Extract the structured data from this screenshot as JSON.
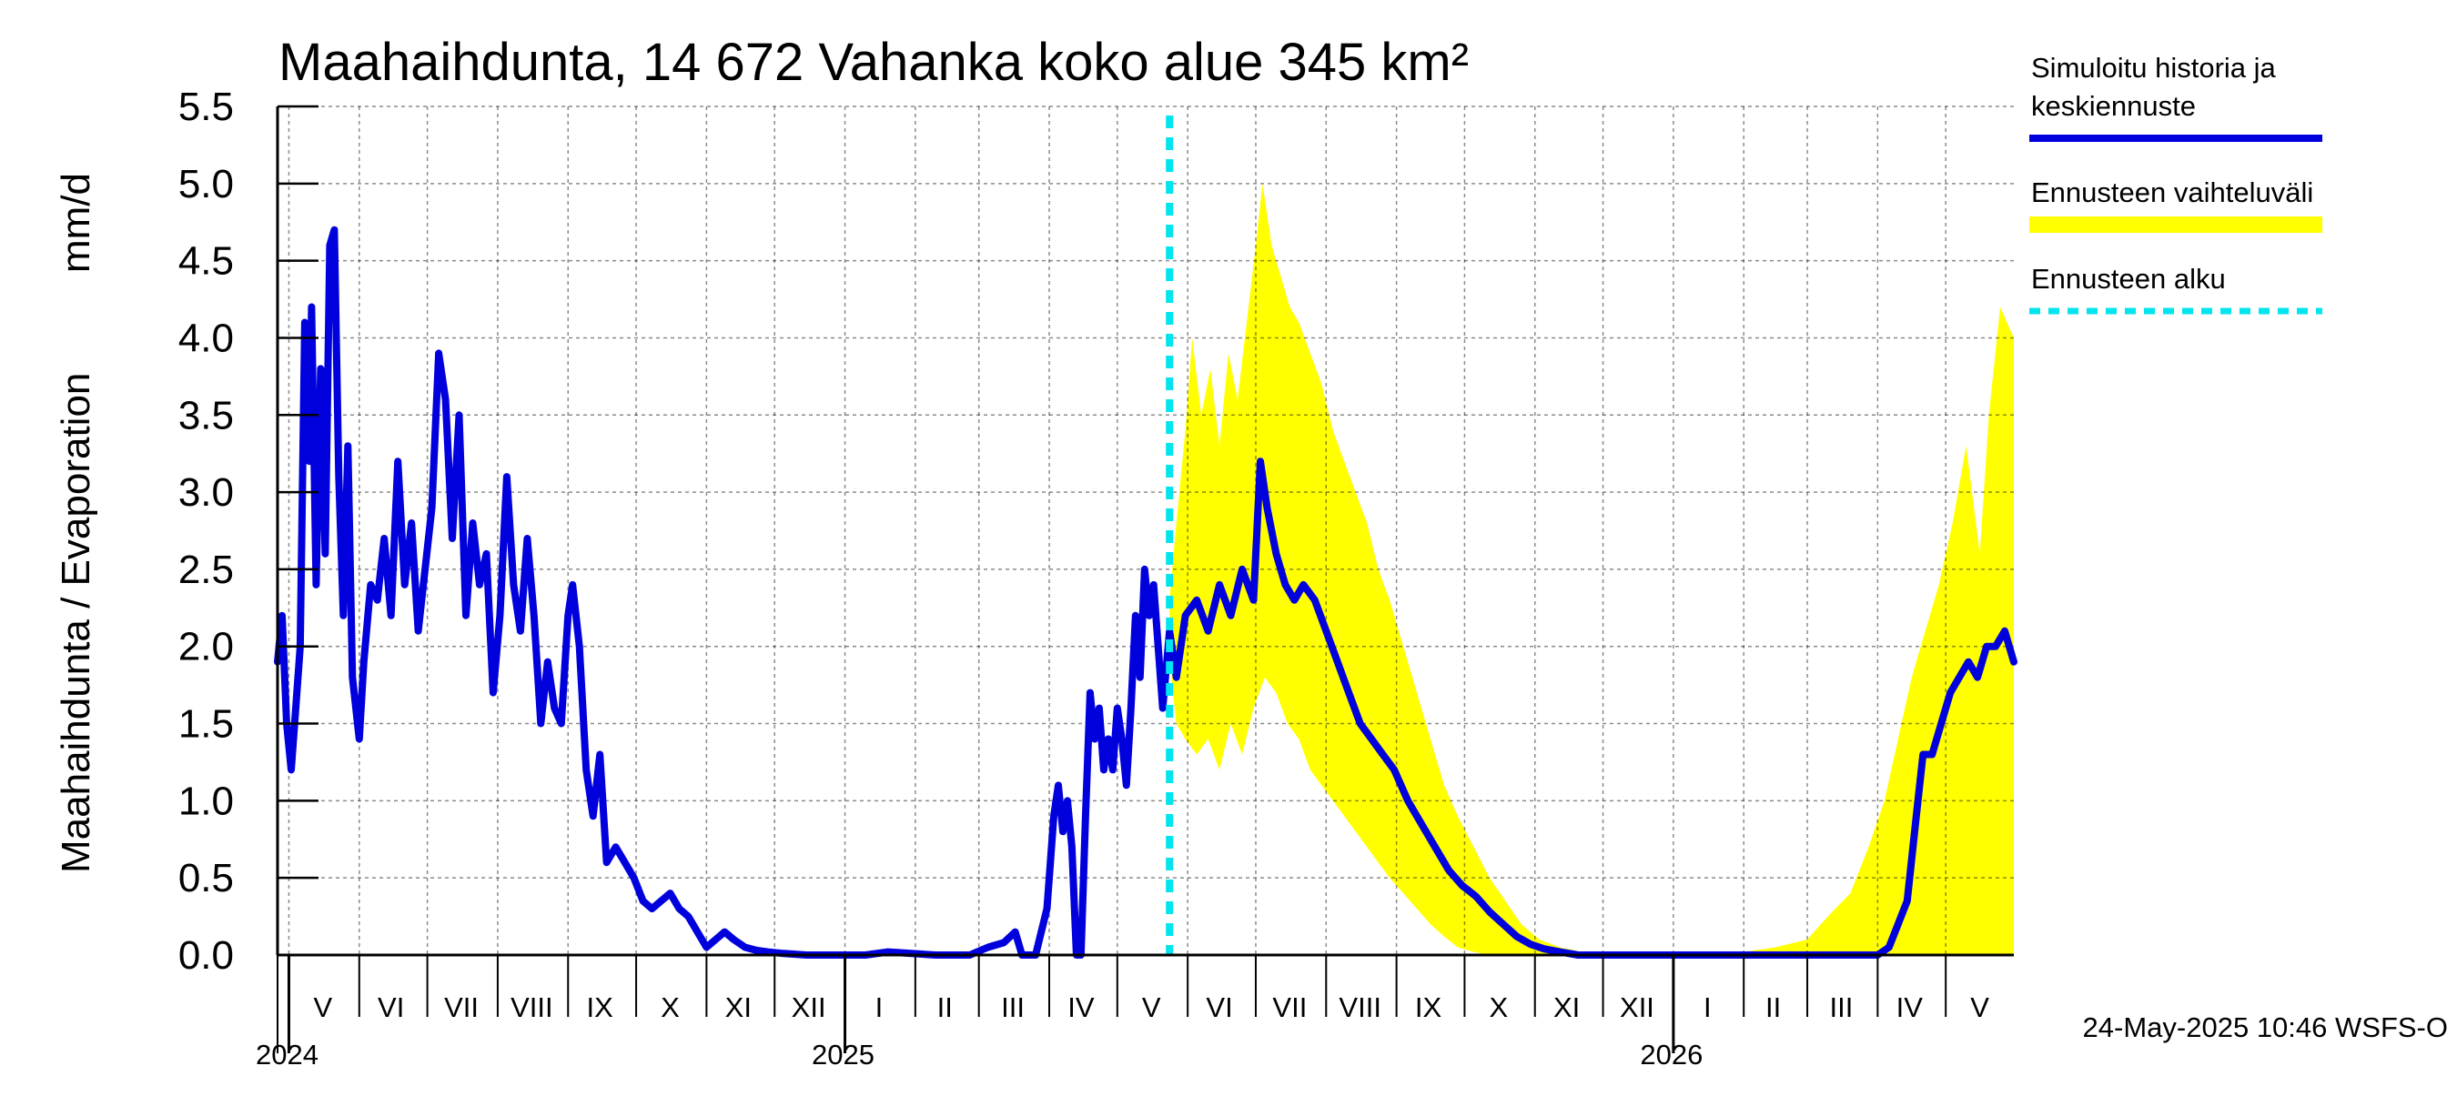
{
  "chart_data": {
    "type": "line",
    "title": "Maahaihdunta, 14 672 Vahanka koko alue 345 km²",
    "ylabel_left": "Maahaihdunta / Evaporation",
    "ylabel_unit": "mm/d",
    "ylim": [
      0.0,
      5.5
    ],
    "yticks": [
      "0.0",
      "0.5",
      "1.0",
      "1.5",
      "2.0",
      "2.5",
      "3.0",
      "3.5",
      "4.0",
      "4.5",
      "5.0",
      "5.5"
    ],
    "ytick_values": [
      0.0,
      0.5,
      1.0,
      1.5,
      2.0,
      2.5,
      3.0,
      3.5,
      4.0,
      4.5,
      5.0,
      5.5
    ],
    "xlim": [
      "2024-04-26",
      "2026-05-31"
    ],
    "x_month_labels": [
      {
        "label": "V",
        "date": "2024-05-16"
      },
      {
        "label": "VI",
        "date": "2024-06-15"
      },
      {
        "label": "VII",
        "date": "2024-07-16"
      },
      {
        "label": "VIII",
        "date": "2024-08-16"
      },
      {
        "label": "IX",
        "date": "2024-09-15"
      },
      {
        "label": "X",
        "date": "2024-10-16"
      },
      {
        "label": "XI",
        "date": "2024-11-15"
      },
      {
        "label": "XII",
        "date": "2024-12-16"
      },
      {
        "label": "I",
        "date": "2025-01-16"
      },
      {
        "label": "II",
        "date": "2025-02-14"
      },
      {
        "label": "III",
        "date": "2025-03-16"
      },
      {
        "label": "IV",
        "date": "2025-04-15"
      },
      {
        "label": "V",
        "date": "2025-05-16"
      },
      {
        "label": "VI",
        "date": "2025-06-15"
      },
      {
        "label": "VII",
        "date": "2025-07-16"
      },
      {
        "label": "VIII",
        "date": "2025-08-16"
      },
      {
        "label": "IX",
        "date": "2025-09-15"
      },
      {
        "label": "X",
        "date": "2025-10-16"
      },
      {
        "label": "XI",
        "date": "2025-11-15"
      },
      {
        "label": "XII",
        "date": "2025-12-16"
      },
      {
        "label": "I",
        "date": "2026-01-16"
      },
      {
        "label": "II",
        "date": "2026-02-14"
      },
      {
        "label": "III",
        "date": "2026-03-16"
      },
      {
        "label": "IV",
        "date": "2026-04-15"
      },
      {
        "label": "V",
        "date": "2026-05-16"
      }
    ],
    "x_month_bounds": [
      "2024-05-01",
      "2024-06-01",
      "2024-07-01",
      "2024-08-01",
      "2024-09-01",
      "2024-10-01",
      "2024-11-01",
      "2024-12-01",
      "2025-01-01",
      "2025-02-01",
      "2025-03-01",
      "2025-04-01",
      "2025-05-01",
      "2025-06-01",
      "2025-07-01",
      "2025-08-01",
      "2025-09-01",
      "2025-10-01",
      "2025-11-01",
      "2025-12-01",
      "2026-01-01",
      "2026-02-01",
      "2026-03-01",
      "2026-04-01",
      "2026-05-01"
    ],
    "x_year_labels": [
      {
        "label": "2024",
        "date": "2024-05-01"
      },
      {
        "label": "2025",
        "date": "2025-01-01"
      },
      {
        "label": "2026",
        "date": "2026-01-01"
      }
    ],
    "grid": true,
    "legend_position": "right",
    "legend": [
      {
        "label_lines": [
          "Simuloitu historia ja",
          "keskiennuste"
        ],
        "color": "#0000dd",
        "style": "solid"
      },
      {
        "label_lines": [
          "Ennusteen vaihteluväli"
        ],
        "color": "#ffff00",
        "style": "band"
      },
      {
        "label_lines": [
          "Ennusteen alku"
        ],
        "color": "#00e5ee",
        "style": "dashed"
      }
    ],
    "forecast_start": "2025-05-24",
    "series": [
      {
        "name": "Simuloitu historia ja keskiennuste",
        "color": "#0000dd",
        "points": [
          [
            "2024-04-26",
            1.9
          ],
          [
            "2024-04-28",
            2.2
          ],
          [
            "2024-04-30",
            1.5
          ],
          [
            "2024-05-02",
            1.2
          ],
          [
            "2024-05-04",
            1.6
          ],
          [
            "2024-05-06",
            2.0
          ],
          [
            "2024-05-08",
            4.1
          ],
          [
            "2024-05-10",
            3.2
          ],
          [
            "2024-05-11",
            4.2
          ],
          [
            "2024-05-13",
            2.4
          ],
          [
            "2024-05-15",
            3.8
          ],
          [
            "2024-05-17",
            2.6
          ],
          [
            "2024-05-19",
            4.6
          ],
          [
            "2024-05-21",
            4.7
          ],
          [
            "2024-05-23",
            3.1
          ],
          [
            "2024-05-25",
            2.2
          ],
          [
            "2024-05-27",
            3.3
          ],
          [
            "2024-05-29",
            1.8
          ],
          [
            "2024-06-01",
            1.4
          ],
          [
            "2024-06-03",
            1.9
          ],
          [
            "2024-06-06",
            2.4
          ],
          [
            "2024-06-09",
            2.3
          ],
          [
            "2024-06-12",
            2.7
          ],
          [
            "2024-06-15",
            2.2
          ],
          [
            "2024-06-18",
            3.2
          ],
          [
            "2024-06-21",
            2.4
          ],
          [
            "2024-06-24",
            2.8
          ],
          [
            "2024-06-27",
            2.1
          ],
          [
            "2024-06-30",
            2.5
          ],
          [
            "2024-07-03",
            2.9
          ],
          [
            "2024-07-06",
            3.9
          ],
          [
            "2024-07-09",
            3.6
          ],
          [
            "2024-07-12",
            2.7
          ],
          [
            "2024-07-15",
            3.5
          ],
          [
            "2024-07-18",
            2.2
          ],
          [
            "2024-07-21",
            2.8
          ],
          [
            "2024-07-24",
            2.4
          ],
          [
            "2024-07-27",
            2.6
          ],
          [
            "2024-07-30",
            1.7
          ],
          [
            "2024-08-02",
            2.2
          ],
          [
            "2024-08-05",
            3.1
          ],
          [
            "2024-08-08",
            2.4
          ],
          [
            "2024-08-11",
            2.1
          ],
          [
            "2024-08-14",
            2.7
          ],
          [
            "2024-08-17",
            2.2
          ],
          [
            "2024-08-20",
            1.5
          ],
          [
            "2024-08-23",
            1.9
          ],
          [
            "2024-08-26",
            1.6
          ],
          [
            "2024-08-29",
            1.5
          ],
          [
            "2024-09-01",
            2.2
          ],
          [
            "2024-09-03",
            2.4
          ],
          [
            "2024-09-06",
            2.0
          ],
          [
            "2024-09-09",
            1.2
          ],
          [
            "2024-09-12",
            0.9
          ],
          [
            "2024-09-15",
            1.3
          ],
          [
            "2024-09-18",
            0.6
          ],
          [
            "2024-09-22",
            0.7
          ],
          [
            "2024-09-26",
            0.6
          ],
          [
            "2024-09-30",
            0.5
          ],
          [
            "2024-10-04",
            0.35
          ],
          [
            "2024-10-08",
            0.3
          ],
          [
            "2024-10-12",
            0.35
          ],
          [
            "2024-10-16",
            0.4
          ],
          [
            "2024-10-20",
            0.3
          ],
          [
            "2024-10-24",
            0.25
          ],
          [
            "2024-10-28",
            0.15
          ],
          [
            "2024-11-01",
            0.05
          ],
          [
            "2024-11-05",
            0.1
          ],
          [
            "2024-11-09",
            0.15
          ],
          [
            "2024-11-13",
            0.1
          ],
          [
            "2024-11-18",
            0.05
          ],
          [
            "2024-11-23",
            0.03
          ],
          [
            "2024-11-28",
            0.02
          ],
          [
            "2024-12-05",
            0.01
          ],
          [
            "2024-12-15",
            0.0
          ],
          [
            "2025-01-10",
            0.0
          ],
          [
            "2025-01-20",
            0.02
          ],
          [
            "2025-02-10",
            0.0
          ],
          [
            "2025-02-25",
            0.0
          ],
          [
            "2025-03-05",
            0.05
          ],
          [
            "2025-03-12",
            0.08
          ],
          [
            "2025-03-17",
            0.15
          ],
          [
            "2025-03-20",
            0.0
          ],
          [
            "2025-03-26",
            0.0
          ],
          [
            "2025-03-31",
            0.3
          ],
          [
            "2025-04-03",
            0.9
          ],
          [
            "2025-04-05",
            1.1
          ],
          [
            "2025-04-07",
            0.8
          ],
          [
            "2025-04-09",
            1.0
          ],
          [
            "2025-04-11",
            0.7
          ],
          [
            "2025-04-13",
            0.0
          ],
          [
            "2025-04-15",
            0.0
          ],
          [
            "2025-04-17",
            0.9
          ],
          [
            "2025-04-19",
            1.7
          ],
          [
            "2025-04-21",
            1.4
          ],
          [
            "2025-04-23",
            1.6
          ],
          [
            "2025-04-25",
            1.2
          ],
          [
            "2025-04-27",
            1.4
          ],
          [
            "2025-04-29",
            1.2
          ],
          [
            "2025-05-01",
            1.6
          ],
          [
            "2025-05-03",
            1.4
          ],
          [
            "2025-05-05",
            1.1
          ],
          [
            "2025-05-07",
            1.6
          ],
          [
            "2025-05-09",
            2.2
          ],
          [
            "2025-05-11",
            1.8
          ],
          [
            "2025-05-13",
            2.5
          ],
          [
            "2025-05-15",
            2.2
          ],
          [
            "2025-05-17",
            2.4
          ],
          [
            "2025-05-19",
            2.0
          ],
          [
            "2025-05-21",
            1.6
          ],
          [
            "2025-05-24",
            2.1
          ],
          [
            "2025-05-27",
            1.8
          ],
          [
            "2025-05-31",
            2.2
          ],
          [
            "2025-06-05",
            2.3
          ],
          [
            "2025-06-10",
            2.1
          ],
          [
            "2025-06-15",
            2.4
          ],
          [
            "2025-06-20",
            2.2
          ],
          [
            "2025-06-25",
            2.5
          ],
          [
            "2025-06-30",
            2.3
          ],
          [
            "2025-07-03",
            3.2
          ],
          [
            "2025-07-06",
            2.9
          ],
          [
            "2025-07-10",
            2.6
          ],
          [
            "2025-07-14",
            2.4
          ],
          [
            "2025-07-18",
            2.3
          ],
          [
            "2025-07-22",
            2.4
          ],
          [
            "2025-07-27",
            2.3
          ],
          [
            "2025-08-01",
            2.1
          ],
          [
            "2025-08-06",
            1.9
          ],
          [
            "2025-08-11",
            1.7
          ],
          [
            "2025-08-16",
            1.5
          ],
          [
            "2025-08-21",
            1.4
          ],
          [
            "2025-08-26",
            1.3
          ],
          [
            "2025-08-31",
            1.2
          ],
          [
            "2025-09-06",
            1.0
          ],
          [
            "2025-09-12",
            0.85
          ],
          [
            "2025-09-18",
            0.7
          ],
          [
            "2025-09-24",
            0.55
          ],
          [
            "2025-09-30",
            0.45
          ],
          [
            "2025-10-06",
            0.38
          ],
          [
            "2025-10-12",
            0.28
          ],
          [
            "2025-10-18",
            0.2
          ],
          [
            "2025-10-24",
            0.12
          ],
          [
            "2025-10-30",
            0.07
          ],
          [
            "2025-11-05",
            0.04
          ],
          [
            "2025-11-12",
            0.02
          ],
          [
            "2025-11-20",
            0.0
          ],
          [
            "2026-01-01",
            0.0
          ],
          [
            "2026-03-01",
            0.0
          ],
          [
            "2026-04-01",
            0.0
          ],
          [
            "2026-04-06",
            0.05
          ],
          [
            "2026-04-10",
            0.2
          ],
          [
            "2026-04-14",
            0.35
          ],
          [
            "2026-04-18",
            0.9
          ],
          [
            "2026-04-21",
            1.3
          ],
          [
            "2026-04-25",
            1.3
          ],
          [
            "2026-04-29",
            1.5
          ],
          [
            "2026-05-03",
            1.7
          ],
          [
            "2026-05-07",
            1.8
          ],
          [
            "2026-05-11",
            1.9
          ],
          [
            "2026-05-15",
            1.8
          ],
          [
            "2026-05-19",
            2.0
          ],
          [
            "2026-05-23",
            2.0
          ],
          [
            "2026-05-27",
            2.1
          ],
          [
            "2026-05-31",
            1.9
          ]
        ]
      }
    ],
    "band": {
      "name": "Ennusteen vaihteluväli",
      "color": "#ffff00",
      "upper": [
        [
          "2025-05-24",
          2.3
        ],
        [
          "2025-05-27",
          2.8
        ],
        [
          "2025-05-31",
          3.4
        ],
        [
          "2025-06-03",
          4.0
        ],
        [
          "2025-06-07",
          3.5
        ],
        [
          "2025-06-11",
          3.8
        ],
        [
          "2025-06-15",
          3.3
        ],
        [
          "2025-06-19",
          3.9
        ],
        [
          "2025-06-23",
          3.6
        ],
        [
          "2025-06-27",
          4.1
        ],
        [
          "2025-07-01",
          4.6
        ],
        [
          "2025-07-04",
          5.0
        ],
        [
          "2025-07-08",
          4.6
        ],
        [
          "2025-07-12",
          4.4
        ],
        [
          "2025-07-16",
          4.2
        ],
        [
          "2025-07-20",
          4.1
        ],
        [
          "2025-07-25",
          3.9
        ],
        [
          "2025-07-30",
          3.7
        ],
        [
          "2025-08-04",
          3.4
        ],
        [
          "2025-08-09",
          3.2
        ],
        [
          "2025-08-14",
          3.0
        ],
        [
          "2025-08-19",
          2.8
        ],
        [
          "2025-08-24",
          2.5
        ],
        [
          "2025-08-29",
          2.3
        ],
        [
          "2025-09-04",
          2.0
        ],
        [
          "2025-09-10",
          1.7
        ],
        [
          "2025-09-16",
          1.4
        ],
        [
          "2025-09-22",
          1.1
        ],
        [
          "2025-09-28",
          0.9
        ],
        [
          "2025-10-05",
          0.7
        ],
        [
          "2025-10-12",
          0.5
        ],
        [
          "2025-10-19",
          0.35
        ],
        [
          "2025-10-26",
          0.2
        ],
        [
          "2025-11-03",
          0.1
        ],
        [
          "2025-11-12",
          0.05
        ],
        [
          "2025-11-25",
          0.01
        ],
        [
          "2026-01-01",
          0.0
        ],
        [
          "2026-02-01",
          0.02
        ],
        [
          "2026-02-15",
          0.05
        ],
        [
          "2026-03-01",
          0.1
        ],
        [
          "2026-03-10",
          0.25
        ],
        [
          "2026-03-20",
          0.4
        ],
        [
          "2026-03-28",
          0.7
        ],
        [
          "2026-04-04",
          1.0
        ],
        [
          "2026-04-10",
          1.4
        ],
        [
          "2026-04-16",
          1.8
        ],
        [
          "2026-04-22",
          2.1
        ],
        [
          "2026-04-28",
          2.4
        ],
        [
          "2026-05-04",
          2.8
        ],
        [
          "2026-05-10",
          3.3
        ],
        [
          "2026-05-16",
          2.6
        ],
        [
          "2026-05-20",
          3.5
        ],
        [
          "2026-05-25",
          4.2
        ],
        [
          "2026-05-31",
          4.0
        ]
      ],
      "lower": [
        [
          "2025-05-24",
          1.9
        ],
        [
          "2025-05-27",
          1.5
        ],
        [
          "2025-05-31",
          1.4
        ],
        [
          "2025-06-05",
          1.3
        ],
        [
          "2025-06-10",
          1.4
        ],
        [
          "2025-06-15",
          1.2
        ],
        [
          "2025-06-20",
          1.5
        ],
        [
          "2025-06-25",
          1.3
        ],
        [
          "2025-06-30",
          1.6
        ],
        [
          "2025-07-05",
          1.8
        ],
        [
          "2025-07-10",
          1.7
        ],
        [
          "2025-07-15",
          1.5
        ],
        [
          "2025-07-20",
          1.4
        ],
        [
          "2025-07-25",
          1.2
        ],
        [
          "2025-07-30",
          1.1
        ],
        [
          "2025-08-04",
          1.0
        ],
        [
          "2025-08-09",
          0.9
        ],
        [
          "2025-08-14",
          0.8
        ],
        [
          "2025-08-19",
          0.7
        ],
        [
          "2025-08-24",
          0.6
        ],
        [
          "2025-08-29",
          0.5
        ],
        [
          "2025-09-04",
          0.4
        ],
        [
          "2025-09-10",
          0.3
        ],
        [
          "2025-09-16",
          0.2
        ],
        [
          "2025-09-22",
          0.12
        ],
        [
          "2025-09-28",
          0.05
        ],
        [
          "2025-10-05",
          0.02
        ],
        [
          "2025-10-12",
          0.0
        ],
        [
          "2026-05-31",
          0.0
        ]
      ]
    }
  },
  "footer": {
    "timestamp": "24-May-2025 10:46 WSFS-O"
  }
}
